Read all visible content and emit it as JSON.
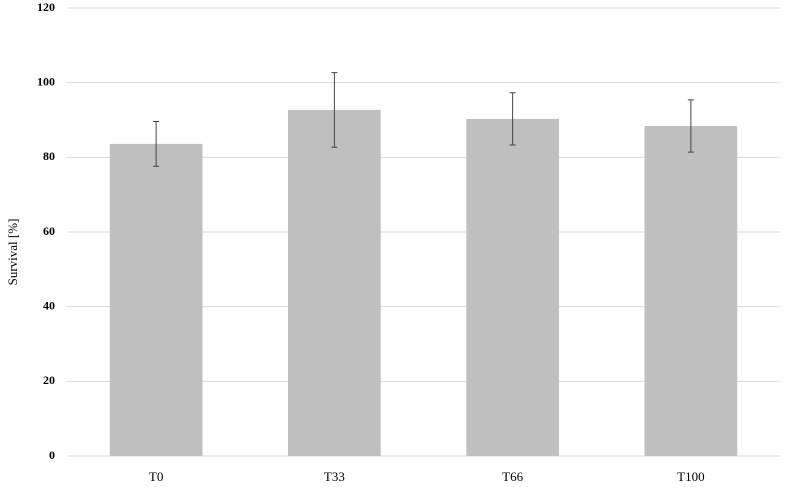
{
  "chart_data": {
    "type": "bar",
    "y_label": "Survival [%]",
    "categories": [
      "T0",
      "T33",
      "T66",
      "T100"
    ],
    "values": [
      83.6,
      92.7,
      90.3,
      88.4
    ],
    "errors": [
      6,
      10,
      7,
      7
    ],
    "color": "#bfbfbf",
    "ylim": [
      0,
      120
    ],
    "yticks": [
      0,
      20,
      40,
      60,
      80,
      100,
      120
    ],
    "grid": true
  }
}
